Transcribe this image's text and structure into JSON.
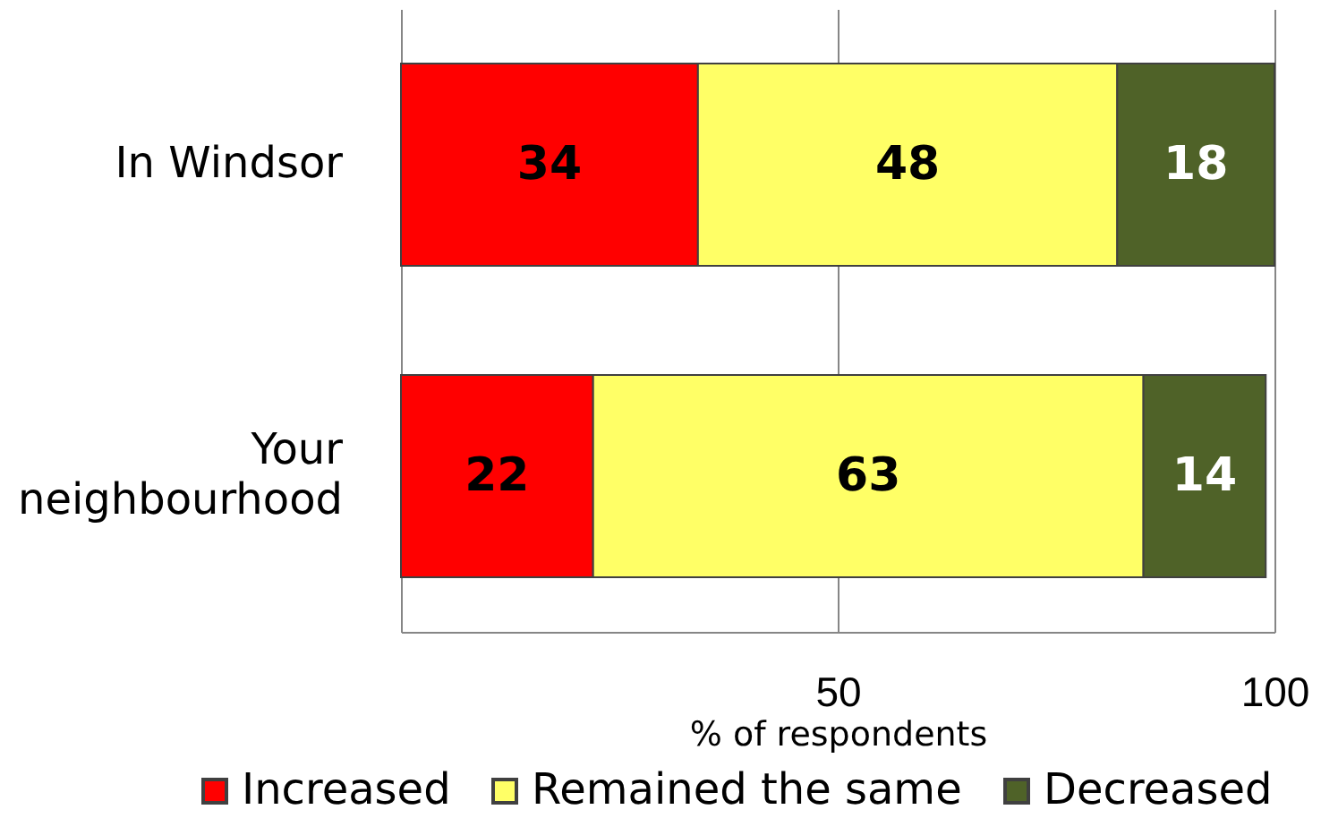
{
  "chart_data": {
    "type": "bar",
    "orientation": "horizontal",
    "stacked": true,
    "categories": [
      "In Windsor",
      "Your neighbourhood"
    ],
    "series": [
      {
        "name": "Increased",
        "color": "#ff0000",
        "values": [
          34,
          22
        ]
      },
      {
        "name": "Remained the same",
        "color": "#ffff66",
        "values": [
          48,
          63
        ]
      },
      {
        "name": "Decreased",
        "color": "#4f6228",
        "values": [
          18,
          14
        ]
      }
    ],
    "xlabel": "% of respondents",
    "xlim": [
      0,
      100
    ],
    "xticks": [
      50,
      100
    ],
    "grid": "x",
    "legend": "bottom",
    "data_labels": true
  }
}
